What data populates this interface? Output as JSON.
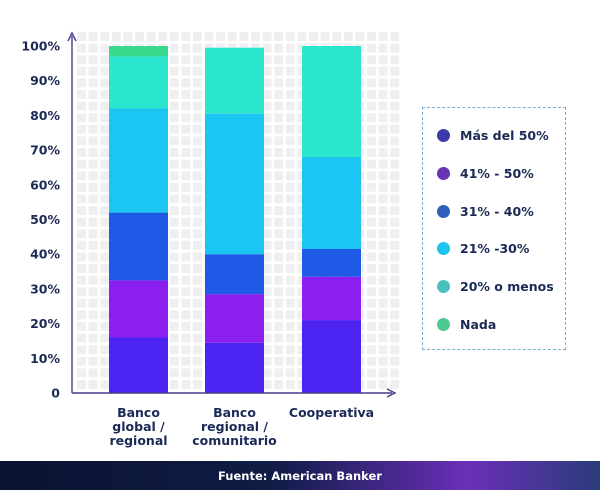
{
  "chart_data": {
    "type": "bar",
    "stacked": true,
    "categories": [
      [
        "Banco",
        "global /",
        "regional"
      ],
      [
        "Banco",
        "regional /",
        "comunitario"
      ],
      [
        "Cooperativa"
      ]
    ],
    "y_ticks": [
      "0",
      "10%",
      "20%",
      "30%",
      "40%",
      "50%",
      "60%",
      "70%",
      "80%",
      "90%",
      "100%"
    ],
    "ylim": [
      0,
      100
    ],
    "series": [
      {
        "name": "Más del 50%",
        "color": "#4b24f2",
        "values": [
          16,
          14.5,
          21
        ]
      },
      {
        "name": "41% - 50%",
        "color": "#8b1ff0",
        "values": [
          16.5,
          14,
          12.5
        ]
      },
      {
        "name": "31% - 40%",
        "color": "#1f5ae6",
        "values": [
          19.5,
          11.5,
          8
        ]
      },
      {
        "name": "21% -30%",
        "color": "#1cc6f2",
        "values": [
          30,
          40.5,
          26.5
        ]
      },
      {
        "name": "20% o menos",
        "color": "#2ae6cf",
        "values": [
          15,
          19,
          32
        ]
      },
      {
        "name": "Nada",
        "color": "#38d98c",
        "values": [
          3,
          0,
          0
        ]
      }
    ],
    "legend": {
      "placement": "right",
      "items": [
        {
          "label": "Más del 50%",
          "color": "#3b3aa8"
        },
        {
          "label": "41% - 50%",
          "color": "#6a35b5"
        },
        {
          "label": "31% - 40%",
          "color": "#2f5fb8"
        },
        {
          "label": "21% -30%",
          "color": "#1fc3ef"
        },
        {
          "label": "20% o menos",
          "color": "#48c1be"
        },
        {
          "label": "Nada",
          "color": "#4cc98e"
        }
      ]
    },
    "grid": true
  },
  "footer": {
    "source": "Fuente: American Banker"
  }
}
